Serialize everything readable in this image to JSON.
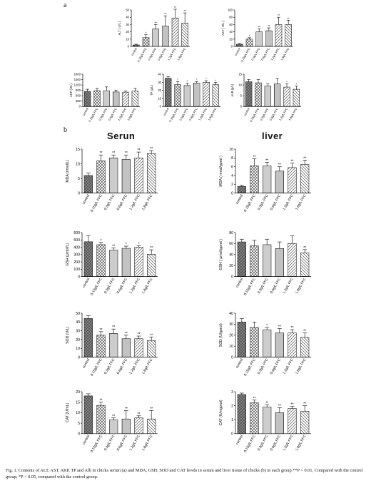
{
  "figure": {
    "panel_a": "a",
    "panel_b": "b",
    "serum_title": "Serun",
    "liver_title": "liver",
    "caption": "Fig. 1. Contents of ALT, AST, AKP, TP and Alb in chicks serum (a) and MDA, GSH, SOD and CAT levels in serum and liver tissue of chicks (b) in each group.**P < 0.01, Compared with the control group; *P < 0.05, compared with the control group."
  },
  "colors": {
    "bar_fill": "#ffffff",
    "bar_stroke": "#222222",
    "dark_pattern": "#555555",
    "text": "#111111"
  },
  "chart_data": [
    {
      "id": "alt",
      "type": "bar",
      "ylabel": "ALT ( U/L )",
      "ylim": [
        0,
        50
      ],
      "ticks": [
        0,
        10,
        20,
        30,
        40,
        50
      ],
      "categories": [
        "control",
        "0.15g/L FFC",
        "0.3g/L FFC",
        "0.6g/L FFC",
        "1.2g/L FFC",
        "1.8g/L FFC"
      ],
      "values": [
        2,
        12,
        24,
        28,
        39,
        32
      ],
      "errors": [
        1,
        4,
        6,
        14,
        12,
        14
      ],
      "sig": [
        "",
        "*",
        "**",
        "**",
        "**",
        "**"
      ]
    },
    {
      "id": "ast",
      "type": "bar",
      "ylabel": "AST ( U/L )",
      "ylim": [
        0,
        100
      ],
      "ticks": [
        0,
        20,
        40,
        60,
        80,
        100
      ],
      "categories": [
        "control",
        "0.15g/L FFC",
        "0.3g/L FFC",
        "0.6g/L FFC",
        "1.2g/L FFC",
        "1.8g/L FFC"
      ],
      "values": [
        6,
        20,
        40,
        43,
        60,
        60
      ],
      "errors": [
        2,
        4,
        8,
        8,
        20,
        12
      ],
      "sig": [
        "",
        "*",
        "**",
        "**",
        "**",
        "**"
      ]
    },
    {
      "id": "akp",
      "type": "bar",
      "ylabel": "AKP (U/L)",
      "ylim": [
        0,
        1800
      ],
      "ticks": [
        0,
        300,
        600,
        900,
        1200,
        1500,
        1800
      ],
      "categories": [
        "control",
        "0.15g/L FFC",
        "0.3g/L FFC",
        "0.6g/L FFC",
        "1.2g/L FFC",
        "1.8g/L FFC"
      ],
      "values": [
        840,
        880,
        880,
        810,
        800,
        860
      ],
      "errors": [
        120,
        130,
        210,
        100,
        60,
        150
      ],
      "sig": [
        "",
        "",
        "",
        "",
        "",
        ""
      ]
    },
    {
      "id": "tp",
      "type": "bar",
      "ylabel": "TP (g/L)",
      "ylim": [
        0,
        40
      ],
      "ticks": [
        0,
        10,
        20,
        30,
        40
      ],
      "categories": [
        "control",
        "0.15g/L FFC",
        "0.3g/L FFC",
        "0.6g/L FFC",
        "1.2g/L FFC",
        "1.8g/L FFC"
      ],
      "values": [
        35,
        27,
        26,
        29,
        30,
        27
      ],
      "errors": [
        2,
        4,
        3,
        2,
        2,
        3
      ],
      "sig": [
        "",
        "*",
        "*",
        "*",
        "*",
        "*"
      ]
    },
    {
      "id": "alb",
      "type": "bar",
      "ylabel": "ALB (g/L)",
      "ylim": [
        0,
        15
      ],
      "ticks": [
        0,
        5,
        10,
        15
      ],
      "categories": [
        "control",
        "0.15g/L FFC",
        "0.3g/L FFC",
        "0.6g/L FFC",
        "1.2g/L FFC",
        "1.8g/L FFC"
      ],
      "values": [
        11.5,
        11,
        9.5,
        10.5,
        9,
        8
      ],
      "errors": [
        1,
        1.5,
        1,
        2.5,
        1.5,
        1.5
      ],
      "sig": [
        "",
        "",
        "",
        "",
        "*",
        "*"
      ]
    },
    {
      "id": "mda_serum",
      "type": "bar",
      "ylabel": "MDA (nmol/L)",
      "ylim": [
        0,
        15
      ],
      "ticks": [
        0,
        5,
        10,
        15
      ],
      "categories": [
        "control",
        "0.15g/L FFC",
        "0.3g/L FFC",
        "0.6g/L FFC",
        "1.2g/L FFC",
        "1.8g/L FFC"
      ],
      "values": [
        6,
        11,
        12,
        11.5,
        12,
        13.5
      ],
      "errors": [
        0.8,
        2,
        1,
        1.5,
        2,
        1
      ],
      "sig": [
        "",
        "**",
        "**",
        "**",
        "**",
        "**"
      ]
    },
    {
      "id": "mda_liver",
      "type": "bar",
      "ylabel": "MDA ( nmol/gprot )",
      "ylim": [
        0,
        10
      ],
      "ticks": [
        0,
        2,
        4,
        6,
        8,
        10
      ],
      "categories": [
        "control",
        "0.15g/L FFC",
        "0.3g/L FFC",
        "0.6g/L FFC",
        "1.2g/L FFC",
        "1.8g/L FFC"
      ],
      "values": [
        1.5,
        6.2,
        6.2,
        5,
        5.8,
        6.5
      ],
      "errors": [
        0.3,
        1.6,
        0.8,
        1,
        1,
        1
      ],
      "sig": [
        "",
        "**",
        "**",
        "**",
        "**",
        "**"
      ]
    },
    {
      "id": "gsh_serum",
      "type": "bar",
      "ylabel": "GSH (μmol/L)",
      "ylim": [
        0,
        600
      ],
      "ticks": [
        0,
        100,
        200,
        300,
        400,
        500,
        600
      ],
      "categories": [
        "control",
        "0.15g/L FFC",
        "0.3g/L FFC",
        "0.6g/L FFC",
        "1.2g/L FFC",
        "1.8g/L FFC"
      ],
      "values": [
        475,
        435,
        360,
        385,
        400,
        305
      ],
      "errors": [
        80,
        30,
        30,
        30,
        20,
        60
      ],
      "sig": [
        "",
        "*",
        "**",
        "*",
        "*",
        "**"
      ]
    },
    {
      "id": "gsh_liver",
      "type": "bar",
      "ylabel": "GSH ( μmol/gprot )",
      "ylim": [
        0,
        80
      ],
      "ticks": [
        0,
        20,
        40,
        60,
        80
      ],
      "categories": [
        "control",
        "0.15g/L FFC",
        "0.3g/L FFC",
        "0.6g/L FFC",
        "1.2g/L FFC",
        "1.8g/L FFC"
      ],
      "values": [
        63,
        56,
        58,
        51,
        60,
        43
      ],
      "errors": [
        5,
        10,
        10,
        12,
        14,
        6
      ],
      "sig": [
        "",
        "",
        "",
        "",
        "",
        "**"
      ]
    },
    {
      "id": "sod_serum",
      "type": "bar",
      "ylabel": "SOD (U/L)",
      "ylim": [
        0,
        50
      ],
      "ticks": [
        0,
        10,
        20,
        30,
        40,
        50
      ],
      "categories": [
        "control",
        "0.15g/L FFC",
        "0.3g/L FFC",
        "0.6g/L FFC",
        "1.2g/L FFC",
        "1.8g/L FFC"
      ],
      "values": [
        44,
        25,
        27,
        21,
        21,
        19
      ],
      "errors": [
        3,
        4,
        5,
        4,
        3,
        4
      ],
      "sig": [
        "",
        "**",
        "**",
        "**",
        "**",
        "**"
      ]
    },
    {
      "id": "sod_liver",
      "type": "bar",
      "ylabel": "SOD (U/gprot)",
      "ylim": [
        0,
        40
      ],
      "ticks": [
        0,
        10,
        20,
        30,
        40
      ],
      "categories": [
        "control",
        "0.15g/L FFC",
        "0.3g/L FFC",
        "0.6g/L FFC",
        "1.2g/L FFC",
        "1.8g/L FFC"
      ],
      "values": [
        32,
        27,
        25,
        22,
        22,
        18
      ],
      "errors": [
        3,
        5,
        2,
        4,
        3,
        4
      ],
      "sig": [
        "",
        "",
        "*",
        "**",
        "**",
        "**"
      ]
    },
    {
      "id": "cat_serum",
      "type": "bar",
      "ylabel": "CAT (U/mL)",
      "ylim": [
        0,
        20
      ],
      "ticks": [
        0,
        5,
        10,
        15,
        20
      ],
      "categories": [
        "control",
        "0.15g/L FFC",
        "0.3g/L FFC",
        "0.6g/L FFC",
        "1.2g/L FFC",
        "1.8g/L FFC"
      ],
      "values": [
        18,
        13.5,
        6.5,
        7,
        7.5,
        7
      ],
      "errors": [
        1,
        1.5,
        1,
        4,
        1,
        4
      ],
      "sig": [
        "",
        "**",
        "**",
        "**",
        "**",
        "**"
      ]
    },
    {
      "id": "cat_liver",
      "type": "bar",
      "ylabel": "CAT (U/mgprot)",
      "ylim": [
        0,
        3
      ],
      "ticks": [
        0,
        1,
        2,
        3
      ],
      "categories": [
        "control",
        "0.15g/L FFC",
        "0.3g/L FFC",
        "0.6g/L FFC",
        "1.2g/L FFC",
        "1.8g/L FFC"
      ],
      "values": [
        2.8,
        2.2,
        1.9,
        1.5,
        1.8,
        1.6
      ],
      "errors": [
        0.1,
        0.2,
        0.15,
        0.35,
        0.15,
        0.4
      ],
      "sig": [
        "",
        "**",
        "**",
        "**",
        "**",
        "**"
      ]
    }
  ]
}
